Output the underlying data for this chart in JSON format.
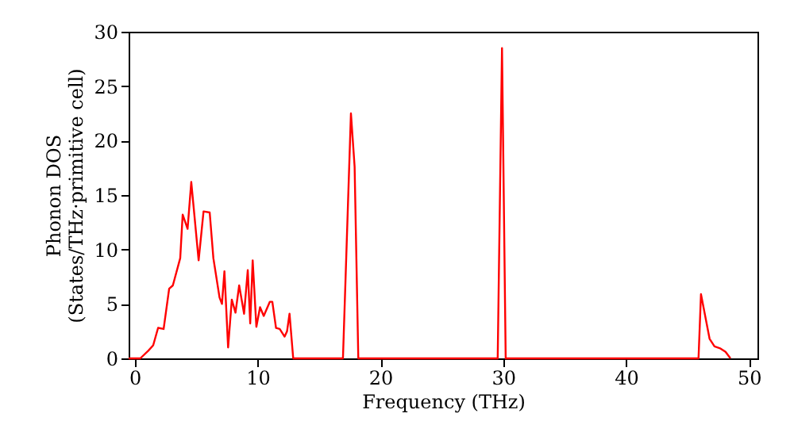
{
  "chart_data": {
    "type": "line",
    "xlabel": "Frequency (THz)",
    "ylabel": "Phonon DOS\n(States/THz·primitive cell)",
    "xlim": [
      -0.5,
      50.7
    ],
    "ylim": [
      0,
      30
    ],
    "xticks": [
      0,
      10,
      20,
      30,
      40,
      50
    ],
    "yticks": [
      0,
      5,
      10,
      15,
      20,
      25,
      30
    ],
    "grid": false,
    "marker": "none",
    "line_style": "solid",
    "series": [
      {
        "color": "#ff0000",
        "x": [
          -0.5,
          0.45,
          1.1,
          1.5,
          1.9,
          2.35,
          2.8,
          3.1,
          3.7,
          3.9,
          4.3,
          4.6,
          5.2,
          5.6,
          6.1,
          6.4,
          6.9,
          7.1,
          7.3,
          7.6,
          7.9,
          8.2,
          8.5,
          8.9,
          9.2,
          9.4,
          9.6,
          9.9,
          10.2,
          10.5,
          11.0,
          11.2,
          11.5,
          11.8,
          12.2,
          12.4,
          12.6,
          12.9,
          16.95,
          17.6,
          17.9,
          18.2,
          29.55,
          29.9,
          30.2,
          45.9,
          46.1,
          46.8,
          47.2,
          47.7,
          48.1,
          48.5
        ],
        "values": [
          0,
          0,
          0.7,
          1.2,
          2.8,
          2.7,
          6.4,
          6.7,
          9.2,
          13.2,
          11.9,
          16.2,
          9.0,
          13.5,
          13.4,
          9.2,
          5.6,
          5.0,
          8.0,
          1.0,
          5.4,
          4.2,
          6.7,
          4.1,
          8.1,
          3.2,
          9.0,
          2.9,
          4.7,
          3.9,
          5.2,
          5.2,
          2.8,
          2.7,
          2.0,
          2.5,
          4.1,
          0,
          0,
          22.5,
          17.6,
          0,
          0,
          28.5,
          0,
          0,
          5.9,
          1.8,
          1.1,
          0.9,
          0.6,
          0
        ]
      }
    ]
  }
}
